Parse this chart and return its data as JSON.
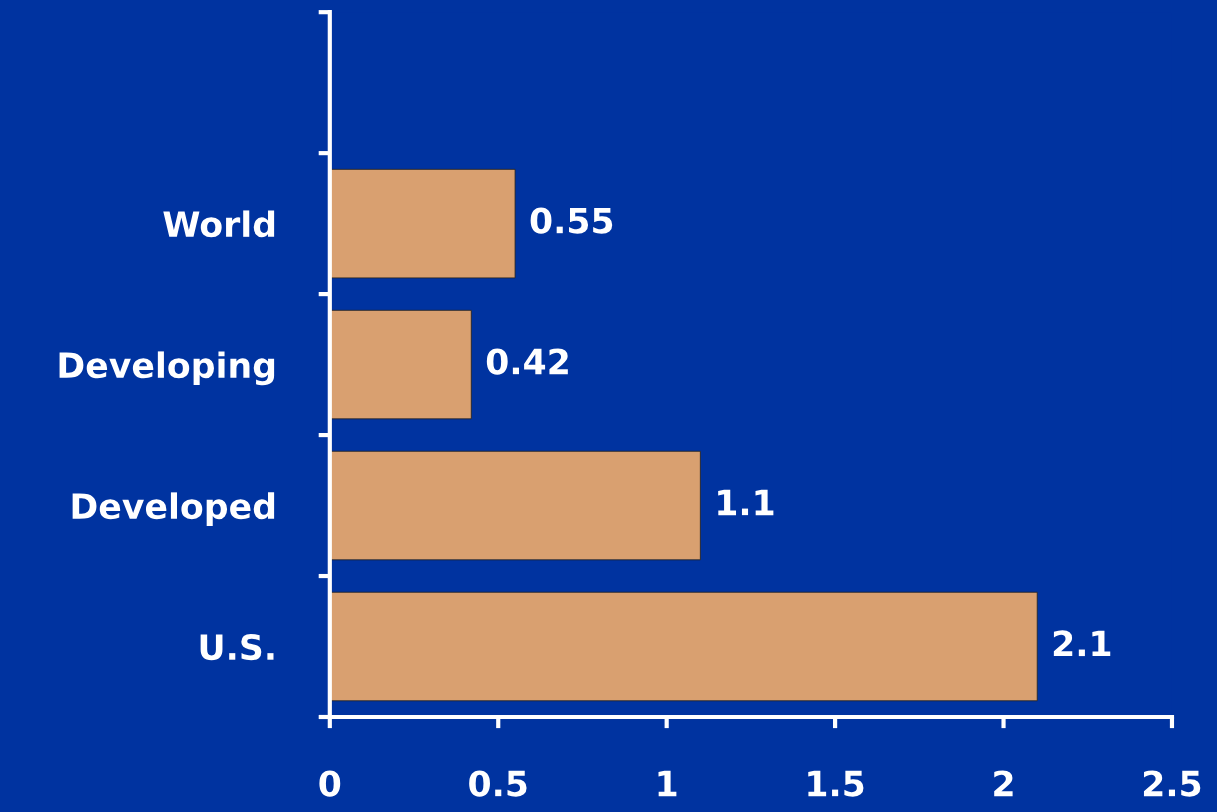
{
  "chart_data": {
    "type": "bar",
    "orientation": "horizontal",
    "categories": [
      null,
      "World",
      "Developing",
      "Developed",
      "U.S."
    ],
    "values": [
      null,
      0.55,
      0.42,
      1.1,
      2.1
    ],
    "color": "#d9a070",
    "xlim": [
      0,
      2.5
    ],
    "xticks": [
      0,
      0.5,
      1,
      1.5,
      2,
      2.5
    ],
    "data_labels": true,
    "grid": false,
    "legend": false
  }
}
